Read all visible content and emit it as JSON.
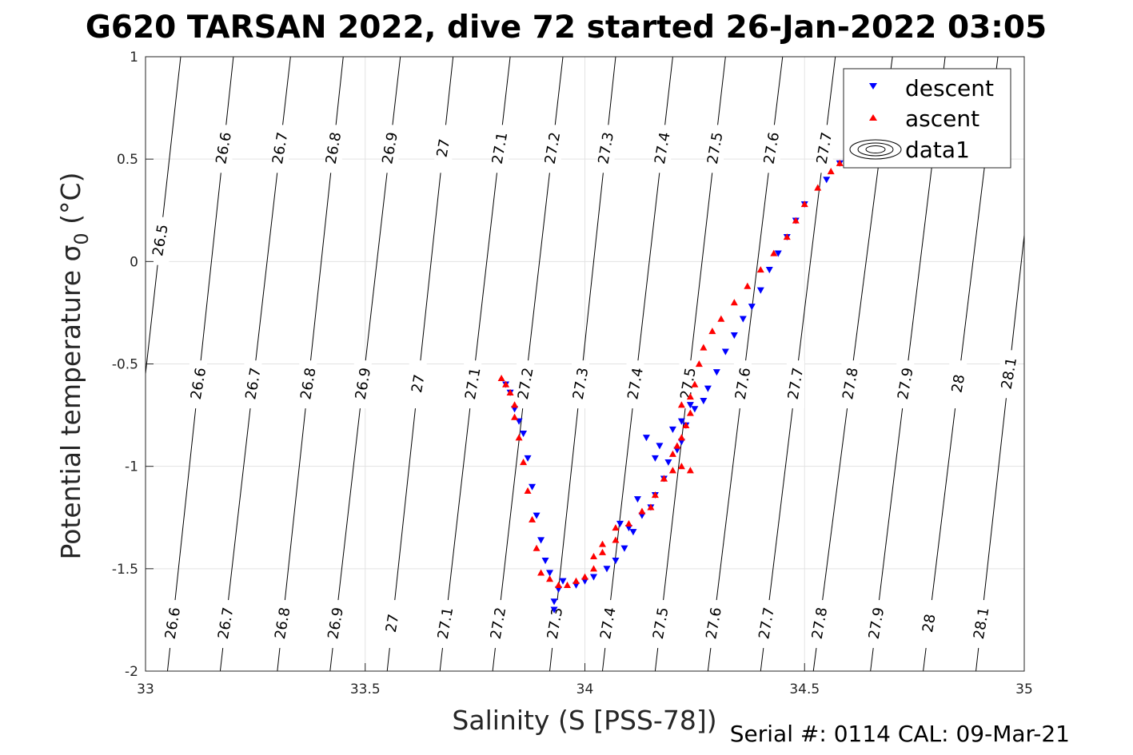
{
  "chart_data": {
    "type": "scatter",
    "title": "G620 TARSAN 2022, dive 72 started 26-Jan-2022 03:05",
    "xlabel": "Salinity (S [PSS-78])",
    "ylabel": "Potential temperature σ",
    "ylabel_sub": "0",
    "ylabel_unit": "(°C)",
    "xlim": [
      33,
      35
    ],
    "ylim": [
      -2,
      1
    ],
    "xticks": [
      33,
      33.5,
      34,
      34.5,
      35
    ],
    "xtick_labels": [
      "33",
      "33.5",
      "34",
      "34.5",
      "35"
    ],
    "yticks": [
      1,
      0.5,
      0,
      -0.5,
      -1,
      -1.5,
      -2
    ],
    "ytick_labels": [
      "1",
      "0.5",
      "0",
      "-0.5",
      "-1",
      "-1.5",
      "-2"
    ],
    "grid": true,
    "legend_position": "top-right",
    "legend": [
      "descent",
      "ascent",
      "data1"
    ],
    "footer": "Serial #: 0114  CAL: 09-Mar-21",
    "contour_lines": [
      {
        "label": "26.5",
        "x_at_top": 33.08,
        "x_at_bottom": null,
        "labels_at_y": [
          0.1
        ]
      },
      {
        "label": "26.6",
        "x_at_top": 33.2,
        "x_at_bottom": 33.05,
        "labels_at_y": [
          0.55,
          -0.6,
          -1.77
        ]
      },
      {
        "label": "26.7",
        "x_at_top": 33.33,
        "x_at_bottom": 33.17,
        "labels_at_y": [
          0.55,
          -0.6,
          -1.77
        ]
      },
      {
        "label": "26.8",
        "x_at_top": 33.45,
        "x_at_bottom": 33.3,
        "labels_at_y": [
          0.55,
          -0.6,
          -1.77
        ]
      },
      {
        "label": "26.9",
        "x_at_top": 33.58,
        "x_at_bottom": 33.42,
        "labels_at_y": [
          0.55,
          -0.6,
          -1.77
        ]
      },
      {
        "label": "27",
        "x_at_top": 33.7,
        "x_at_bottom": 33.55,
        "labels_at_y": [
          0.55,
          -0.6,
          -1.77
        ]
      },
      {
        "label": "27.1",
        "x_at_top": 33.83,
        "x_at_bottom": 33.67,
        "labels_at_y": [
          0.55,
          -0.6,
          -1.77
        ]
      },
      {
        "label": "27.2",
        "x_at_top": 33.95,
        "x_at_bottom": 33.79,
        "labels_at_y": [
          0.55,
          -0.6,
          -1.77
        ]
      },
      {
        "label": "27.3",
        "x_at_top": 34.07,
        "x_at_bottom": 33.92,
        "labels_at_y": [
          0.55,
          -0.6,
          -1.77
        ]
      },
      {
        "label": "27.4",
        "x_at_top": 34.2,
        "x_at_bottom": 34.04,
        "labels_at_y": [
          0.55,
          -0.6,
          -1.77
        ]
      },
      {
        "label": "27.5",
        "x_at_top": 34.32,
        "x_at_bottom": 34.16,
        "labels_at_y": [
          0.55,
          -0.6,
          -1.77
        ]
      },
      {
        "label": "27.6",
        "x_at_top": 34.45,
        "x_at_bottom": 34.28,
        "labels_at_y": [
          0.55,
          -0.6,
          -1.77
        ]
      },
      {
        "label": "27.7",
        "x_at_top": 34.57,
        "x_at_bottom": 34.4,
        "labels_at_y": [
          0.55,
          -0.6,
          -1.77
        ]
      },
      {
        "label": "27.8",
        "x_at_top": 34.7,
        "x_at_bottom": 34.52,
        "labels_at_y": [
          -0.6,
          -1.77
        ]
      },
      {
        "label": "27.9",
        "x_at_top": 34.82,
        "x_at_bottom": 34.65,
        "labels_at_y": [
          -0.6,
          -1.77
        ]
      },
      {
        "label": "28",
        "x_at_top": 34.94,
        "x_at_bottom": 34.77,
        "labels_at_y": [
          -0.6,
          -1.77
        ]
      },
      {
        "label": "28.1",
        "x_at_top": null,
        "x_at_bottom": 34.89,
        "labels_at_y": [
          -0.55,
          -1.77
        ]
      }
    ],
    "series": [
      {
        "name": "descent",
        "marker": "triangle-down",
        "color": "#0000ff",
        "x": [
          34.58,
          34.55,
          34.5,
          34.48,
          34.46,
          34.44,
          34.42,
          34.4,
          34.38,
          34.36,
          34.34,
          34.32,
          34.3,
          34.28,
          34.27,
          34.25,
          34.23,
          34.22,
          34.21,
          34.19,
          34.18,
          34.16,
          34.15,
          34.13,
          34.11,
          34.09,
          34.07,
          34.05,
          34.02,
          34.0,
          33.98,
          33.95,
          33.94,
          33.93,
          33.93,
          33.92,
          33.91,
          33.9,
          33.89,
          33.88,
          33.87,
          33.86,
          33.85,
          33.84,
          33.83,
          33.82,
          34.14,
          34.17,
          34.2,
          34.24,
          34.1,
          34.08,
          34.12,
          34.16,
          34.22
        ],
        "y": [
          0.48,
          0.4,
          0.28,
          0.2,
          0.12,
          0.04,
          -0.04,
          -0.14,
          -0.22,
          -0.28,
          -0.36,
          -0.44,
          -0.54,
          -0.62,
          -0.68,
          -0.72,
          -0.8,
          -0.88,
          -0.92,
          -0.98,
          -1.06,
          -1.14,
          -1.2,
          -1.24,
          -1.32,
          -1.4,
          -1.46,
          -1.5,
          -1.54,
          -1.56,
          -1.58,
          -1.56,
          -1.6,
          -1.66,
          -1.7,
          -1.52,
          -1.46,
          -1.36,
          -1.24,
          -1.1,
          -0.96,
          -0.84,
          -0.78,
          -0.72,
          -0.64,
          -0.6,
          -0.86,
          -0.9,
          -0.82,
          -0.7,
          -1.3,
          -1.28,
          -1.16,
          -0.96,
          -0.78
        ]
      },
      {
        "name": "ascent",
        "marker": "triangle-up",
        "color": "#ff0000",
        "x": [
          34.58,
          34.56,
          34.53,
          34.5,
          34.48,
          34.46,
          34.43,
          34.4,
          34.37,
          34.34,
          34.31,
          34.29,
          34.27,
          34.26,
          34.25,
          34.24,
          34.24,
          34.23,
          34.22,
          34.21,
          34.2,
          34.18,
          34.16,
          34.13,
          34.1,
          34.07,
          34.04,
          34.02,
          34.0,
          33.98,
          33.96,
          33.94,
          33.92,
          33.9,
          33.89,
          33.88,
          33.87,
          33.86,
          33.85,
          33.84,
          33.84,
          33.83,
          33.82,
          33.81,
          34.02,
          34.04,
          34.07,
          34.2,
          34.22,
          34.24,
          34.22,
          34.18,
          34.15
        ],
        "y": [
          0.48,
          0.44,
          0.36,
          0.28,
          0.2,
          0.12,
          0.04,
          -0.04,
          -0.12,
          -0.2,
          -0.28,
          -0.34,
          -0.42,
          -0.5,
          -0.6,
          -0.66,
          -0.74,
          -0.8,
          -0.86,
          -0.9,
          -0.94,
          -1.06,
          -1.14,
          -1.22,
          -1.28,
          -1.36,
          -1.42,
          -1.5,
          -1.54,
          -1.56,
          -1.58,
          -1.58,
          -1.55,
          -1.52,
          -1.4,
          -1.26,
          -1.12,
          -0.98,
          -0.86,
          -0.76,
          -0.7,
          -0.64,
          -0.6,
          -0.57,
          -1.44,
          -1.38,
          -1.3,
          -1.02,
          -1.0,
          -1.02,
          -0.7,
          -1.06,
          -1.2
        ]
      }
    ]
  }
}
